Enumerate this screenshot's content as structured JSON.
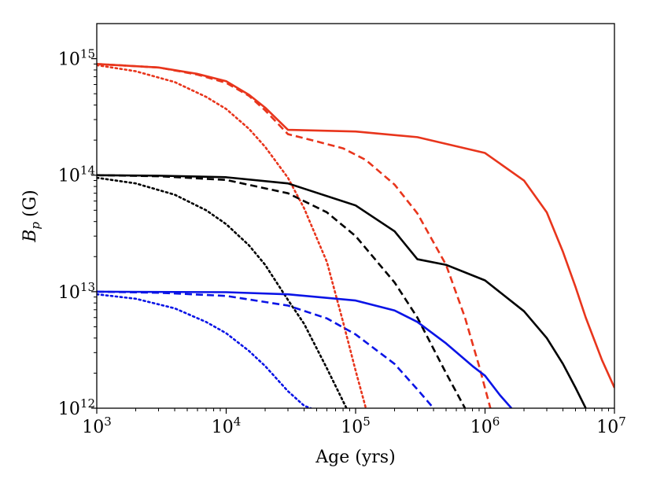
{
  "chart_data": {
    "type": "line",
    "title": "",
    "xlabel": "Age (yrs)",
    "ylabel": {
      "main": "B",
      "sub": "p",
      "unit": "(G)"
    },
    "xscale": "log",
    "yscale": "log",
    "xlim": [
      1000,
      10000000
    ],
    "ylim": [
      1000000000000,
      2000000000000000.0
    ],
    "grid": false,
    "legend": "none",
    "x_ticks": [
      {
        "value": 1000,
        "base": "10",
        "exp": "3"
      },
      {
        "value": 10000,
        "base": "10",
        "exp": "4"
      },
      {
        "value": 100000,
        "base": "10",
        "exp": "5"
      },
      {
        "value": 1000000,
        "base": "10",
        "exp": "6"
      },
      {
        "value": 10000000,
        "base": "10",
        "exp": "7"
      }
    ],
    "y_ticks": [
      {
        "value": 1000000000000,
        "base": "10",
        "exp": "12"
      },
      {
        "value": 10000000000000,
        "base": "10",
        "exp": "13"
      },
      {
        "value": 100000000000000,
        "base": "10",
        "exp": "14"
      },
      {
        "value": 1000000000000000,
        "base": "10",
        "exp": "15"
      }
    ],
    "series": [
      {
        "name": "red-solid",
        "color": "#e8351c",
        "style": "solid",
        "points": [
          [
            1000,
            900000000000000.0
          ],
          [
            3000,
            840000000000000.0
          ],
          [
            6000,
            740000000000000.0
          ],
          [
            10000,
            640000000000000.0
          ],
          [
            15000,
            490000000000000.0
          ],
          [
            20000,
            380000000000000.0
          ],
          [
            30000,
            245000000000000.0
          ],
          [
            100000,
            237000000000000.0
          ],
          [
            300000,
            212000000000000.0
          ],
          [
            1000000,
            155000000000000.0
          ],
          [
            2000000,
            90000000000000.0
          ],
          [
            3000000,
            48000000000000.0
          ],
          [
            4000000,
            22000000000000.0
          ],
          [
            5000000,
            11000000000000.0
          ],
          [
            6000000,
            6000000000000.0
          ],
          [
            8000000,
            2600000000000.0
          ],
          [
            10000000,
            1500000000000.0
          ]
        ]
      },
      {
        "name": "red-dashed",
        "color": "#e8351c",
        "style": "dashed",
        "points": [
          [
            1000,
            900000000000000.0
          ],
          [
            3000,
            840000000000000.0
          ],
          [
            6000,
            730000000000000.0
          ],
          [
            10000,
            620000000000000.0
          ],
          [
            15000,
            480000000000000.0
          ],
          [
            20000,
            360000000000000.0
          ],
          [
            30000,
            225000000000000.0
          ],
          [
            50000,
            195000000000000.0
          ],
          [
            80000,
            170000000000000.0
          ],
          [
            120000,
            135000000000000.0
          ],
          [
            200000,
            83000000000000.0
          ],
          [
            300000,
            47000000000000.0
          ],
          [
            500000,
            17000000000000.0
          ],
          [
            700000,
            6000000000000.0
          ],
          [
            900000,
            2300000000000.0
          ],
          [
            1100000,
            1000000000000.0
          ]
        ]
      },
      {
        "name": "red-dotted",
        "color": "#e8351c",
        "style": "dotted",
        "points": [
          [
            1000,
            880000000000000.0
          ],
          [
            2000,
            780000000000000.0
          ],
          [
            4000,
            630000000000000.0
          ],
          [
            7000,
            470000000000000.0
          ],
          [
            10000,
            370000000000000.0
          ],
          [
            15000,
            250000000000000.0
          ],
          [
            20000,
            175000000000000.0
          ],
          [
            30000,
            95000000000000.0
          ],
          [
            40000,
            52000000000000.0
          ],
          [
            60000,
            18000000000000.0
          ],
          [
            80000,
            5500000000000.0
          ],
          [
            100000,
            2100000000000.0
          ],
          [
            120000,
            1000000000000.0
          ]
        ]
      },
      {
        "name": "black-solid",
        "color": "#000000",
        "style": "solid",
        "points": [
          [
            1000,
            100000000000000.0
          ],
          [
            3000,
            99000000000000.0
          ],
          [
            10000,
            96000000000000.0
          ],
          [
            30000,
            85000000000000.0
          ],
          [
            100000,
            55000000000000.0
          ],
          [
            200000,
            33000000000000.0
          ],
          [
            300000,
            19000000000000.0
          ],
          [
            500000,
            17000000000000.0
          ],
          [
            1000000,
            12500000000000.0
          ],
          [
            2000000,
            6800000000000.0
          ],
          [
            3000000,
            4000000000000.0
          ],
          [
            4000000,
            2400000000000.0
          ],
          [
            5000000,
            1500000000000.0
          ],
          [
            6000000,
            1000000000000.0
          ]
        ]
      },
      {
        "name": "black-dashed",
        "color": "#000000",
        "style": "dashed",
        "points": [
          [
            1000,
            100000000000000.0
          ],
          [
            3000,
            98000000000000.0
          ],
          [
            10000,
            91000000000000.0
          ],
          [
            30000,
            70000000000000.0
          ],
          [
            60000,
            48000000000000.0
          ],
          [
            100000,
            30000000000000.0
          ],
          [
            200000,
            12000000000000.0
          ],
          [
            300000,
            6000000000000.0
          ],
          [
            500000,
            2000000000000.0
          ],
          [
            700000,
            1000000000000.0
          ]
        ]
      },
      {
        "name": "black-dotted",
        "color": "#000000",
        "style": "dotted",
        "points": [
          [
            1000,
            95000000000000.0
          ],
          [
            2000,
            85000000000000.0
          ],
          [
            4000,
            68000000000000.0
          ],
          [
            7000,
            50000000000000.0
          ],
          [
            10000,
            38000000000000.0
          ],
          [
            15000,
            25000000000000.0
          ],
          [
            20000,
            17000000000000.0
          ],
          [
            30000,
            8500000000000.0
          ],
          [
            40000,
            5300000000000.0
          ],
          [
            60000,
            2200000000000.0
          ],
          [
            85000,
            1000000000000.0
          ]
        ]
      },
      {
        "name": "blue-solid",
        "color": "#0a14e6",
        "style": "solid",
        "points": [
          [
            1000,
            10000000000000.0
          ],
          [
            10000,
            9900000000000.0
          ],
          [
            30000,
            9500000000000.0
          ],
          [
            100000,
            8400000000000.0
          ],
          [
            200000,
            6900000000000.0
          ],
          [
            300000,
            5500000000000.0
          ],
          [
            500000,
            3600000000000.0
          ],
          [
            800000,
            2300000000000.0
          ],
          [
            1000000,
            1900000000000.0
          ],
          [
            1300000,
            1300000000000.0
          ],
          [
            1600000,
            1000000000000.0
          ]
        ]
      },
      {
        "name": "blue-dashed",
        "color": "#0a14e6",
        "style": "dashed",
        "points": [
          [
            1000,
            10000000000000.0
          ],
          [
            3000,
            9800000000000.0
          ],
          [
            10000,
            9200000000000.0
          ],
          [
            30000,
            7600000000000.0
          ],
          [
            60000,
            5900000000000.0
          ],
          [
            100000,
            4300000000000.0
          ],
          [
            200000,
            2400000000000.0
          ],
          [
            300000,
            1450000000000.0
          ],
          [
            400000,
            1000000000000.0
          ]
        ]
      },
      {
        "name": "blue-dotted",
        "color": "#0a14e6",
        "style": "dotted",
        "points": [
          [
            1000,
            9500000000000.0
          ],
          [
            2000,
            8700000000000.0
          ],
          [
            4000,
            7200000000000.0
          ],
          [
            7000,
            5500000000000.0
          ],
          [
            10000,
            4400000000000.0
          ],
          [
            15000,
            3100000000000.0
          ],
          [
            20000,
            2300000000000.0
          ],
          [
            30000,
            1400000000000.0
          ],
          [
            40000,
            1050000000000.0
          ],
          [
            45000,
            1000000000000.0
          ]
        ]
      }
    ]
  }
}
